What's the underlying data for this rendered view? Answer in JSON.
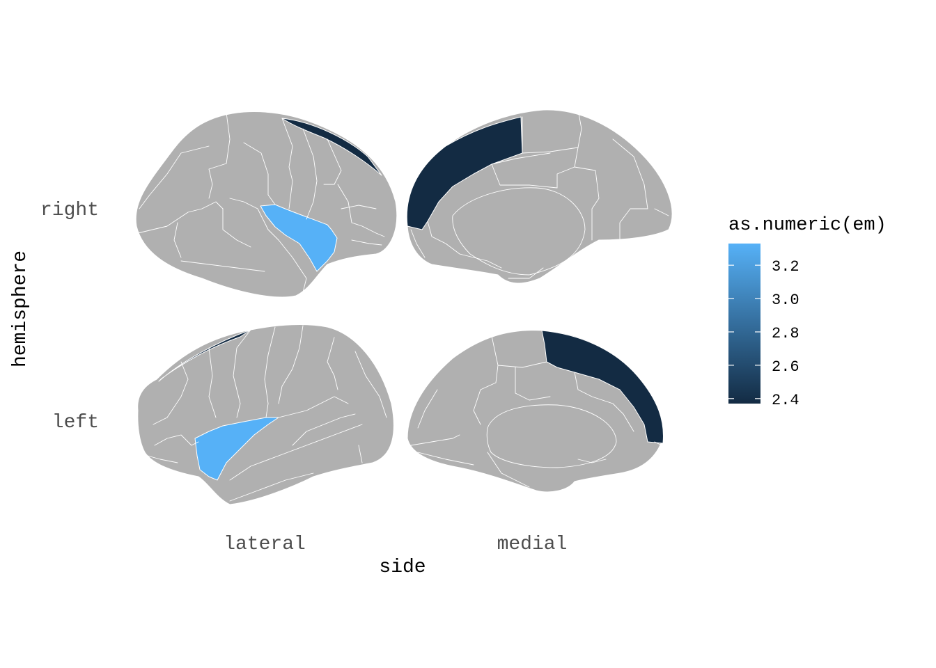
{
  "chart_data": {
    "type": "brain-atlas",
    "x_title": "side",
    "y_title": "hemisphere",
    "x_categories": [
      "lateral",
      "medial"
    ],
    "y_categories": [
      "right",
      "left"
    ],
    "legend": {
      "title": "as.numeric(em)",
      "min": 2.37,
      "max": 3.33,
      "low_color": "#132b43",
      "high_color": "#56b1f7",
      "ticks": [
        {
          "value": 3.2,
          "label": "3.2"
        },
        {
          "value": 3.0,
          "label": "3.0"
        },
        {
          "value": 2.8,
          "label": "2.8"
        },
        {
          "value": 2.6,
          "label": "2.6"
        },
        {
          "value": 2.4,
          "label": "2.4"
        }
      ]
    },
    "na_color": "#b0b0b0",
    "regions": [
      {
        "hemisphere": "right",
        "side": "lateral",
        "region": "temporal-region",
        "value": 3.33
      },
      {
        "hemisphere": "right",
        "side": "medial",
        "region": "frontal-medial-region",
        "value": 2.37
      },
      {
        "hemisphere": "left",
        "side": "lateral",
        "region": "temporal-region",
        "value": 3.33
      },
      {
        "hemisphere": "left",
        "side": "medial",
        "region": "frontal-medial-region",
        "value": 2.37
      }
    ]
  }
}
